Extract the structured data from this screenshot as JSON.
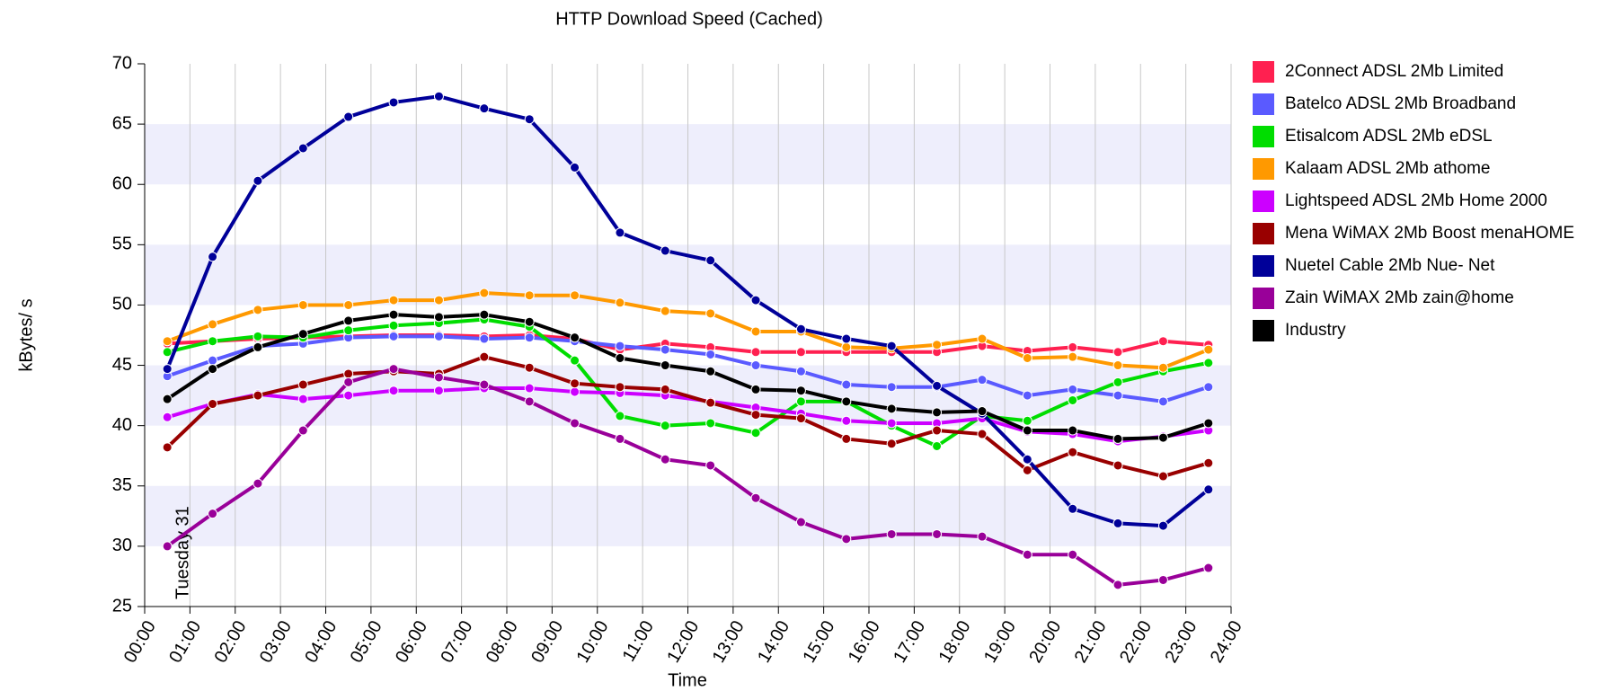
{
  "chart_data": {
    "type": "line",
    "title": "HTTP Download Speed (Cached)",
    "x_label": "Time",
    "y_label": "kBytes/ s",
    "annotation": "Tuesday 31",
    "x": [
      0.5,
      1.5,
      2.5,
      3.5,
      4.5,
      5.5,
      6.5,
      7.5,
      8.5,
      9.5,
      10.5,
      11.5,
      12.5,
      13.5,
      14.5,
      15.5,
      16.5,
      17.5,
      18.5,
      19.5,
      20.5,
      21.5,
      22.5,
      23.5
    ],
    "xlim": [
      0,
      24
    ],
    "xticks": [
      {
        "value": 0,
        "label": "00:00"
      },
      {
        "value": 1,
        "label": "01:00"
      },
      {
        "value": 2,
        "label": "02:00"
      },
      {
        "value": 3,
        "label": "03:00"
      },
      {
        "value": 4,
        "label": "04:00"
      },
      {
        "value": 5,
        "label": "05:00"
      },
      {
        "value": 6,
        "label": "06:00"
      },
      {
        "value": 7,
        "label": "07:00"
      },
      {
        "value": 8,
        "label": "08:00"
      },
      {
        "value": 9,
        "label": "09:00"
      },
      {
        "value": 10,
        "label": "10:00"
      },
      {
        "value": 11,
        "label": "11:00"
      },
      {
        "value": 12,
        "label": "12:00"
      },
      {
        "value": 13,
        "label": "13:00"
      },
      {
        "value": 14,
        "label": "14:00"
      },
      {
        "value": 15,
        "label": "15:00"
      },
      {
        "value": 16,
        "label": "16:00"
      },
      {
        "value": 17,
        "label": "17:00"
      },
      {
        "value": 18,
        "label": "18:00"
      },
      {
        "value": 19,
        "label": "19:00"
      },
      {
        "value": 20,
        "label": "20:00"
      },
      {
        "value": 21,
        "label": "21:00"
      },
      {
        "value": 22,
        "label": "22:00"
      },
      {
        "value": 23,
        "label": "23:00"
      },
      {
        "value": 24,
        "label": "24:00"
      }
    ],
    "ylim": [
      25,
      70
    ],
    "yticks": [
      25,
      30,
      35,
      40,
      45,
      50,
      55,
      60,
      65,
      70
    ],
    "grid": true,
    "legend": "right",
    "series": [
      {
        "name": "2Connect ADSL 2Mb Limited",
        "color": "#ff2050",
        "values": [
          46.8,
          47,
          47.2,
          47.3,
          47.4,
          47.5,
          47.5,
          47.4,
          47.5,
          47.2,
          46.3,
          46.8,
          46.5,
          46.1,
          46.1,
          46.1,
          46.1,
          46.1,
          46.6,
          46.2,
          46.5,
          46.1,
          47,
          46.7
        ]
      },
      {
        "name": "Batelco ADSL 2Mb Broadband",
        "color": "#5a5aff",
        "values": [
          44.1,
          45.4,
          46.6,
          46.8,
          47.3,
          47.4,
          47.4,
          47.2,
          47.3,
          47,
          46.6,
          46.3,
          45.9,
          45,
          44.5,
          43.4,
          43.2,
          43.2,
          43.8,
          42.5,
          43,
          42.5,
          42,
          43.2
        ]
      },
      {
        "name": "Etisalcom ADSL 2Mb eDSL",
        "color": "#00dd00",
        "values": [
          46.1,
          47,
          47.4,
          47.3,
          47.9,
          48.3,
          48.5,
          48.8,
          48.2,
          45.4,
          40.8,
          40,
          40.2,
          39.4,
          42,
          42,
          40,
          38.3,
          40.8,
          40.4,
          42.1,
          43.6,
          44.5,
          45.2
        ]
      },
      {
        "name": "Kalaam ADSL 2Mb athome",
        "color": "#ff9900",
        "values": [
          47,
          48.4,
          49.6,
          50,
          50,
          50.4,
          50.4,
          51,
          50.8,
          50.8,
          50.2,
          49.5,
          49.3,
          47.8,
          47.8,
          46.5,
          46.4,
          46.7,
          47.2,
          45.6,
          45.7,
          45,
          44.8,
          46.3
        ]
      },
      {
        "name": "Lightspeed ADSL 2Mb Home 2000",
        "color": "#cc00ff",
        "values": [
          40.7,
          41.8,
          42.6,
          42.2,
          42.5,
          42.9,
          42.9,
          43.1,
          43.1,
          42.8,
          42.7,
          42.5,
          42,
          41.5,
          41,
          40.4,
          40.2,
          40.2,
          40.6,
          39.5,
          39.3,
          38.7,
          39.1,
          39.6
        ]
      },
      {
        "name": "Mena WiMAX 2Mb Boost menaHOME",
        "color": "#990000",
        "values": [
          38.2,
          41.8,
          42.5,
          43.4,
          44.3,
          44.5,
          44.3,
          45.7,
          44.8,
          43.5,
          43.2,
          43,
          41.9,
          40.9,
          40.6,
          38.9,
          38.5,
          39.6,
          39.3,
          36.3,
          37.8,
          36.7,
          35.8,
          36.9
        ]
      },
      {
        "name": "Nuetel Cable 2Mb Nue- Net",
        "color": "#000099",
        "values": [
          44.7,
          54,
          60.3,
          63,
          65.6,
          66.8,
          67.3,
          66.3,
          65.4,
          61.4,
          56,
          54.5,
          53.7,
          50.4,
          48,
          47.2,
          46.6,
          43.3,
          41,
          37.2,
          33.1,
          31.9,
          31.7,
          34.7
        ]
      },
      {
        "name": "Zain WiMAX 2Mb zain@home",
        "color": "#990099",
        "values": [
          30,
          32.7,
          35.2,
          39.6,
          43.6,
          44.7,
          44,
          43.4,
          42,
          40.2,
          38.9,
          37.2,
          36.7,
          34,
          32,
          30.6,
          31,
          31,
          30.8,
          29.3,
          29.3,
          26.8,
          27.2,
          28.2
        ]
      },
      {
        "name": "Industry",
        "color": "#000000",
        "values": [
          42.2,
          44.7,
          46.5,
          47.6,
          48.7,
          49.2,
          49,
          49.2,
          48.6,
          47.3,
          45.6,
          45,
          44.5,
          43,
          42.9,
          42,
          41.4,
          41.1,
          41.2,
          39.6,
          39.6,
          38.9,
          39,
          40.2
        ]
      }
    ]
  }
}
